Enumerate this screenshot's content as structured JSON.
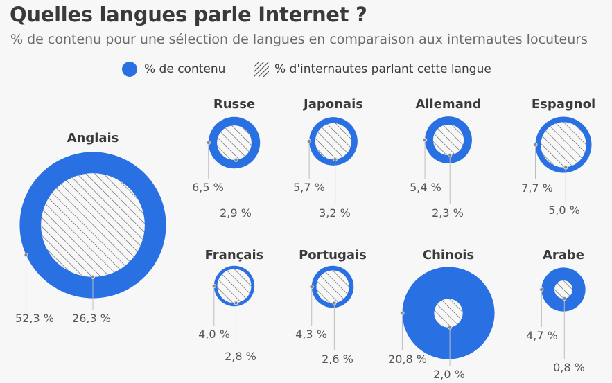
{
  "title": "Quelles langues parle Internet ?",
  "subtitle": "% de contenu pour une sélection de langues en comparaison aux internautes locuteurs",
  "legend": {
    "content": "% de contenu",
    "speakers": "% d'internautes parlant cette langue"
  },
  "colors": {
    "content": "#2970e2",
    "hatch": "#555555",
    "text": "#3a3a3a",
    "leader": "#bdbdbd"
  },
  "chart_data": {
    "type": "bubble-comparison",
    "series": [
      {
        "name": "% de contenu"
      },
      {
        "name": "% d'internautes parlant cette langue"
      }
    ],
    "languages": [
      {
        "name": "Anglais",
        "content": 52.3,
        "speakers": 26.3,
        "content_label": "52,3 %",
        "speakers_label": "26,3 %"
      },
      {
        "name": "Russe",
        "content": 6.5,
        "speakers": 2.9,
        "content_label": "6,5 %",
        "speakers_label": "2,9 %"
      },
      {
        "name": "Japonais",
        "content": 5.7,
        "speakers": 3.2,
        "content_label": "5,7 %",
        "speakers_label": "3,2 %"
      },
      {
        "name": "Allemand",
        "content": 5.4,
        "speakers": 2.3,
        "content_label": "5,4 %",
        "speakers_label": "2,3 %"
      },
      {
        "name": "Espagnol",
        "content": 7.7,
        "speakers": 5.0,
        "content_label": "7,7 %",
        "speakers_label": "5,0 %"
      },
      {
        "name": "Français",
        "content": 4.0,
        "speakers": 2.8,
        "content_label": "4,0 %",
        "speakers_label": "2,8 %"
      },
      {
        "name": "Portugais",
        "content": 4.3,
        "speakers": 2.6,
        "content_label": "4,3 %",
        "speakers_label": "2,6 %"
      },
      {
        "name": "Chinois",
        "content": 20.8,
        "speakers": 2.0,
        "content_label": "20,8 %",
        "speakers_label": "2,0 %"
      },
      {
        "name": "Arabe",
        "content": 4.7,
        "speakers": 0.8,
        "content_label": "4,7 %",
        "speakers_label": "0,8 %"
      }
    ]
  }
}
